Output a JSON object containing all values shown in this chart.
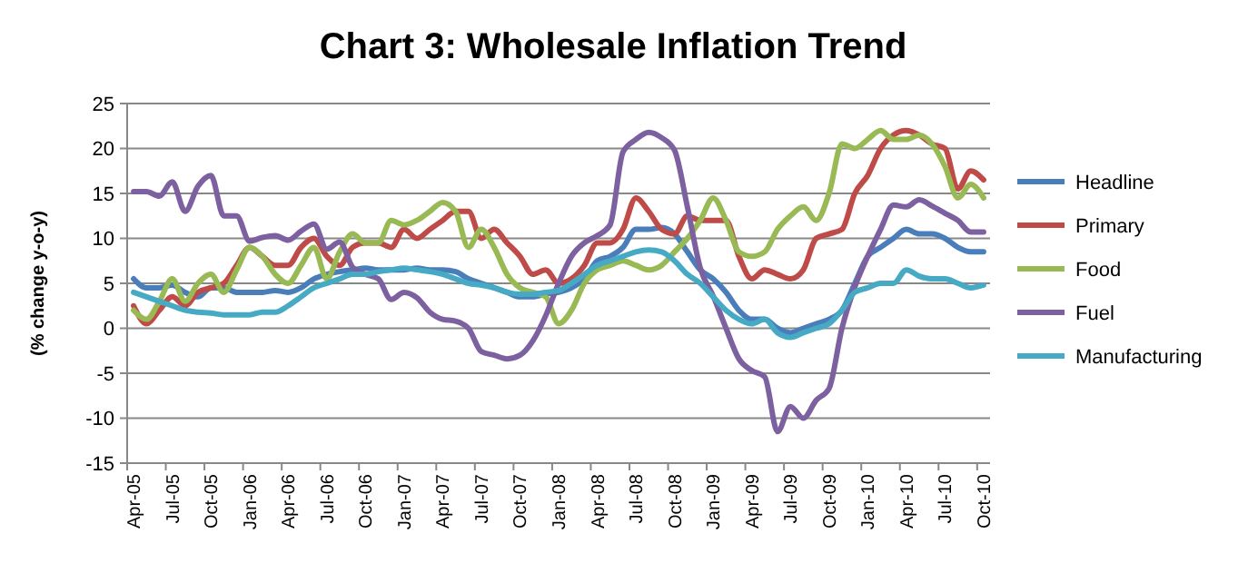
{
  "chart_data": {
    "type": "line",
    "title": "Chart 3: Wholesale Inflation Trend",
    "ylabel": "(% change y-o-y)",
    "categories": [
      "Apr-05",
      null,
      null,
      "Jul-05",
      null,
      null,
      "Oct-05",
      null,
      null,
      "Jan-06",
      null,
      null,
      "Apr-06",
      null,
      null,
      "Jul-06",
      null,
      null,
      "Oct-06",
      null,
      null,
      "Jan-07",
      null,
      null,
      "Apr-07",
      null,
      null,
      "Jul-07",
      null,
      null,
      "Oct-07",
      null,
      null,
      "Jan-08",
      null,
      null,
      "Apr-08",
      null,
      null,
      "Jul-08",
      null,
      null,
      "Oct-08",
      null,
      null,
      "Jan-09",
      null,
      null,
      "Apr-09",
      null,
      null,
      "Jul-09",
      null,
      null,
      "Oct-09",
      null,
      null,
      "Jan-10",
      null,
      null,
      "Apr-10",
      null,
      null,
      "Jul-10",
      null,
      null,
      "Oct-10"
    ],
    "ylim": [
      -15,
      25
    ],
    "yticks": [
      -15,
      -10,
      -5,
      0,
      5,
      10,
      15,
      20,
      25
    ],
    "grid": "y",
    "legend": "right",
    "marker": "none",
    "line_style": "solid",
    "series": [
      {
        "name": "Headline",
        "color": "#4a7ebb",
        "values": [
          5.5,
          4.5,
          4.5,
          4.8,
          4,
          3.5,
          4.5,
          4.5,
          4,
          4,
          4,
          4.2,
          4,
          4.5,
          5.5,
          6,
          6.3,
          6.5,
          6.7,
          6.5,
          6.5,
          6.5,
          6.7,
          6.5,
          6.5,
          6.3,
          5.5,
          5,
          4.5,
          4,
          3.5,
          3.5,
          3.8,
          4,
          4.5,
          5.5,
          7.5,
          8,
          9,
          11,
          11,
          11.2,
          10.5,
          8.5,
          6.5,
          5.5,
          4,
          2,
          1,
          1,
          0,
          -0.5,
          0,
          0.5,
          1,
          2,
          5,
          8,
          9,
          10,
          11,
          10.5,
          10.5,
          10,
          9,
          8.5,
          8.5
        ]
      },
      {
        "name": "Primary",
        "color": "#be4b48",
        "values": [
          2.5,
          0.5,
          2,
          3.5,
          2.5,
          4,
          4.5,
          5,
          7,
          9,
          8,
          7,
          7,
          9,
          10,
          8,
          7,
          9,
          9.5,
          9.5,
          9,
          11,
          10,
          11,
          12,
          13,
          13,
          10,
          11,
          9.5,
          8,
          6,
          6.5,
          5,
          5.5,
          7,
          9.5,
          9.5,
          11,
          14.5,
          13,
          11,
          10.5,
          12.5,
          12,
          12,
          12,
          8,
          5.5,
          6.5,
          6,
          5.5,
          6.5,
          10,
          10.5,
          11,
          15,
          17,
          20,
          21.5,
          22,
          21.5,
          20.5,
          20,
          15.5,
          17.5,
          16.5
        ]
      },
      {
        "name": "Food",
        "color": "#98b954",
        "values": [
          2,
          1,
          3,
          5.5,
          3,
          5,
          6,
          4,
          6.5,
          9,
          8,
          6,
          5,
          7,
          9,
          5.5,
          8.5,
          10.5,
          9.5,
          9.5,
          12,
          11.5,
          12,
          13,
          14,
          13,
          9,
          11,
          9,
          6,
          4.5,
          4,
          3.5,
          0.5,
          2,
          5,
          6.5,
          7,
          7.5,
          7,
          6.5,
          7,
          8.5,
          10,
          12,
          14.5,
          12,
          8.5,
          8,
          8.5,
          11,
          12.5,
          13.5,
          12,
          15,
          20.5,
          20,
          21,
          22,
          21,
          21,
          21.5,
          20.5,
          18,
          14.5,
          16,
          14.5
        ]
      },
      {
        "name": "Fuel",
        "color": "#7d60a0",
        "values": [
          15.2,
          15.2,
          14.7,
          16.3,
          13,
          15.8,
          17,
          12.5,
          12.5,
          9.7,
          10.1,
          10.3,
          9.8,
          10.8,
          11.6,
          8.8,
          9.6,
          6.8,
          6,
          5.5,
          3.2,
          4,
          3.4,
          1.8,
          1,
          0.8,
          0,
          -2.6,
          -3,
          -3.4,
          -3,
          -1.4,
          1.4,
          5,
          8,
          9.5,
          10.3,
          11.5,
          19.6,
          21,
          21.8,
          21.2,
          19.8,
          13.5,
          6.7,
          3.6,
          0,
          -3.4,
          -4.7,
          -5.4,
          -11.5,
          -8.7,
          -10,
          -8,
          -6.7,
          0,
          4.6,
          8,
          11,
          13.7,
          13.5,
          14.3,
          13.6,
          12.8,
          12,
          10.7,
          10.7
        ]
      },
      {
        "name": "Manufacturing",
        "color": "#46aac5",
        "values": [
          4,
          3.5,
          3,
          2.5,
          2,
          1.8,
          1.7,
          1.5,
          1.5,
          1.5,
          1.8,
          1.8,
          2.5,
          3.5,
          4.5,
          5,
          5.5,
          6,
          6,
          6.3,
          6.5,
          6.7,
          6.5,
          6.3,
          6,
          5.5,
          5,
          4.8,
          4.5,
          4,
          3.8,
          3.8,
          4,
          4.2,
          5,
          6,
          7,
          7.5,
          8,
          8.5,
          8.7,
          8.5,
          7.5,
          6,
          5,
          3.5,
          2,
          1,
          0.5,
          1,
          -0.5,
          -1,
          -0.5,
          0,
          0.5,
          2,
          4,
          4.5,
          5,
          5,
          6.5,
          5.8,
          5.5,
          5.5,
          5,
          4.5,
          4.8
        ]
      }
    ]
  }
}
